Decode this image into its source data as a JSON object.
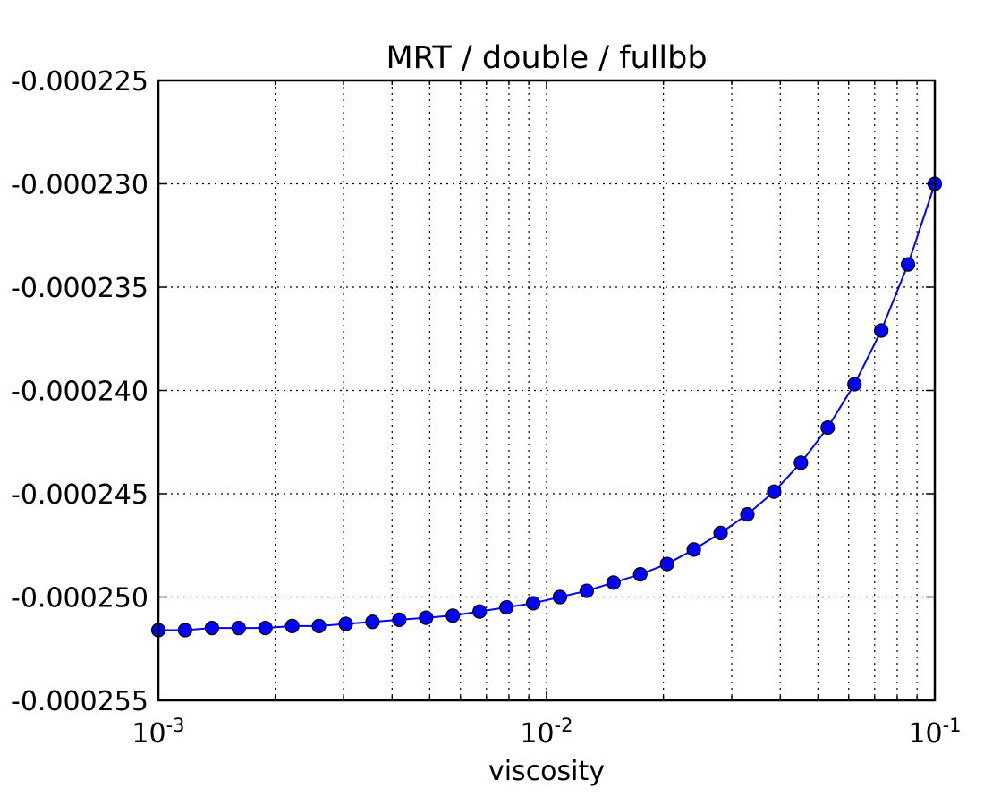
{
  "chart_data": {
    "type": "line",
    "title": "MRT / double / fullbb",
    "xlabel": "viscosity",
    "ylabel": "",
    "xscale": "log",
    "xlim": [
      0.001,
      0.1
    ],
    "ylim": [
      -0.000255,
      -0.000225
    ],
    "grid": true,
    "x_ticks": [
      {
        "value": 0.001,
        "base": "10",
        "exp": "-3"
      },
      {
        "value": 0.01,
        "base": "10",
        "exp": "-2"
      },
      {
        "value": 0.1,
        "base": "10",
        "exp": "-1"
      }
    ],
    "y_ticks": [
      {
        "value": -0.000225,
        "label": "-0.000225"
      },
      {
        "value": -0.00023,
        "label": "-0.000230"
      },
      {
        "value": -0.000235,
        "label": "-0.000235"
      },
      {
        "value": -0.00024,
        "label": "-0.000240"
      },
      {
        "value": -0.000245,
        "label": "-0.000245"
      },
      {
        "value": -0.00025,
        "label": "-0.000250"
      },
      {
        "value": -0.000255,
        "label": "-0.000255"
      }
    ],
    "series": [
      {
        "color": "#0000ff",
        "marker": "circle",
        "x": [
          0.001,
          0.001172,
          0.001374,
          0.00161,
          0.001887,
          0.002212,
          0.002593,
          0.003039,
          0.003562,
          0.004175,
          0.004894,
          0.005736,
          0.006723,
          0.00788,
          0.009237,
          0.010826,
          0.01269,
          0.014874,
          0.017433,
          0.020434,
          0.02395,
          0.028072,
          0.032903,
          0.038566,
          0.045204,
          0.052983,
          0.062102,
          0.07279,
          0.085317,
          0.1
        ],
        "y": [
          -0.0002516,
          -0.0002516,
          -0.0002515,
          -0.0002515,
          -0.0002515,
          -0.0002514,
          -0.0002514,
          -0.0002513,
          -0.0002512,
          -0.0002511,
          -0.000251,
          -0.0002509,
          -0.0002507,
          -0.0002505,
          -0.0002503,
          -0.00025,
          -0.0002497,
          -0.0002493,
          -0.0002489,
          -0.0002484,
          -0.0002477,
          -0.0002469,
          -0.000246,
          -0.0002449,
          -0.0002435,
          -0.0002418,
          -0.0002397,
          -0.0002371,
          -0.0002339,
          -0.00023
        ]
      }
    ]
  }
}
